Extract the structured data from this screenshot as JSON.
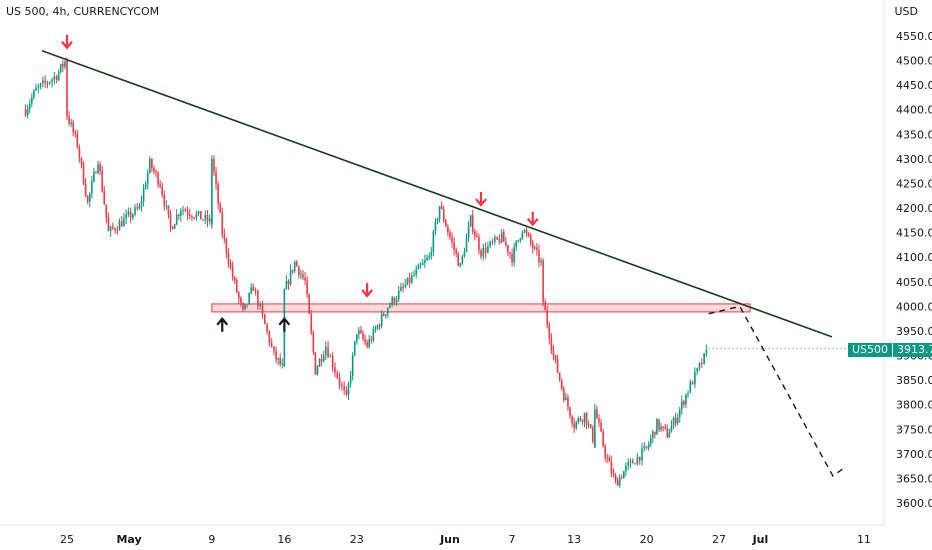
{
  "header": {
    "title": "US 500, 4h, CURRENCYCOM",
    "unit": "USD"
  },
  "price_tag": {
    "symbol": "US500",
    "value": "3913.7"
  },
  "colors": {
    "up": "#089981",
    "down": "#f23645",
    "trend": "#1c3d1c",
    "zone": "#f23645",
    "grid": "#f0f3fa"
  },
  "chart_data": {
    "type": "candlestick",
    "title": "US 500, 4h, CURRENCYCOM",
    "ylabel": "USD",
    "ylim": [
      3575,
      4600
    ],
    "y_ticks": [
      "4550.0",
      "4500.0",
      "4450.0",
      "4400.0",
      "4350.0",
      "4300.0",
      "4250.0",
      "4200.0",
      "4150.0",
      "4100.0",
      "4050.0",
      "4000.0",
      "3950.0",
      "3900.0",
      "3850.0",
      "3800.0",
      "3750.0",
      "3700.0",
      "3650.0",
      "3600.0"
    ],
    "x_ticks": [
      "25",
      "May",
      "9",
      "16",
      "23",
      "Jun",
      "7",
      "13",
      "20",
      "27",
      "Jul",
      "11"
    ],
    "path_close": [
      [
        "Apr 21",
        4400
      ],
      [
        "Apr 22",
        4440
      ],
      [
        "Apr 24",
        4470
      ],
      [
        "Apr 25",
        4505
      ],
      [
        "Apr 25",
        4390
      ],
      [
        "Apr 26",
        4330
      ],
      [
        "Apr 27",
        4210
      ],
      [
        "Apr 28",
        4300
      ],
      [
        "Apr 29",
        4150
      ],
      [
        "May 2",
        4200
      ],
      [
        "May 3",
        4290
      ],
      [
        "May 4",
        4250
      ],
      [
        "May 5",
        4160
      ],
      [
        "May 6",
        4200
      ],
      [
        "May 9",
        4170
      ],
      [
        "May 9",
        4300
      ],
      [
        "May 10",
        4150
      ],
      [
        "May 11",
        4060
      ],
      [
        "May 12",
        3985
      ],
      [
        "May 13",
        4040
      ],
      [
        "May 15",
        3900
      ],
      [
        "May 16",
        3870
      ],
      [
        "May 16",
        4030
      ],
      [
        "May 17",
        4090
      ],
      [
        "May 18",
        4050
      ],
      [
        "May 19",
        3870
      ],
      [
        "May 20",
        3920
      ],
      [
        "May 22",
        3810
      ],
      [
        "May 23",
        3950
      ],
      [
        "May 24",
        3920
      ],
      [
        "May 25",
        3960
      ],
      [
        "May 26",
        4000
      ],
      [
        "May 30",
        4100
      ],
      [
        "May 31",
        4205
      ],
      [
        "Jun 1",
        4140
      ],
      [
        "Jun 2",
        4080
      ],
      [
        "Jun 3",
        4175
      ],
      [
        "Jun 4",
        4110
      ],
      [
        "Jun 6",
        4140
      ],
      [
        "Jun 7",
        4100
      ],
      [
        "Jun 8",
        4160
      ],
      [
        "Jun 9",
        4120
      ],
      [
        "Jun 10",
        4080
      ],
      [
        "Jun 10",
        4010
      ],
      [
        "Jun 11",
        3900
      ],
      [
        "Jun 12",
        3820
      ],
      [
        "Jun 13",
        3760
      ],
      [
        "Jun 14",
        3780
      ],
      [
        "Jun 15",
        3720
      ],
      [
        "Jun 15",
        3790
      ],
      [
        "Jun 16",
        3700
      ],
      [
        "Jun 17",
        3640
      ],
      [
        "Jun 18",
        3670
      ],
      [
        "Jun 20",
        3710
      ],
      [
        "Jun 21",
        3760
      ],
      [
        "Jun 22",
        3740
      ],
      [
        "Jun 23",
        3780
      ],
      [
        "Jun 24",
        3830
      ],
      [
        "Jun 26",
        3913.7
      ]
    ],
    "trendline": {
      "from": [
        "Apr 25",
        4520
      ],
      "to": [
        "Jul 6",
        3938
      ]
    },
    "resistance_zone": {
      "from": "May 9",
      "to": "Jun 30",
      "y": [
        3990,
        4005
      ]
    },
    "projection": [
      [
        "Jun 26",
        3985
      ],
      [
        "Jun 29",
        4000
      ],
      [
        "Jul 8",
        3655
      ],
      [
        "Jul 9",
        3670
      ]
    ],
    "markers": [
      {
        "type": "down",
        "at": [
          "Apr 25",
          4520
        ]
      },
      {
        "type": "up",
        "at": [
          "May 10",
          3985
        ]
      },
      {
        "type": "up",
        "at": [
          "May 16",
          3985
        ]
      },
      {
        "type": "down",
        "at": [
          "May 24",
          4015
        ]
      },
      {
        "type": "down",
        "at": [
          "Jun 4",
          4200
        ]
      },
      {
        "type": "down",
        "at": [
          "Jun 9",
          4160
        ]
      }
    ]
  }
}
